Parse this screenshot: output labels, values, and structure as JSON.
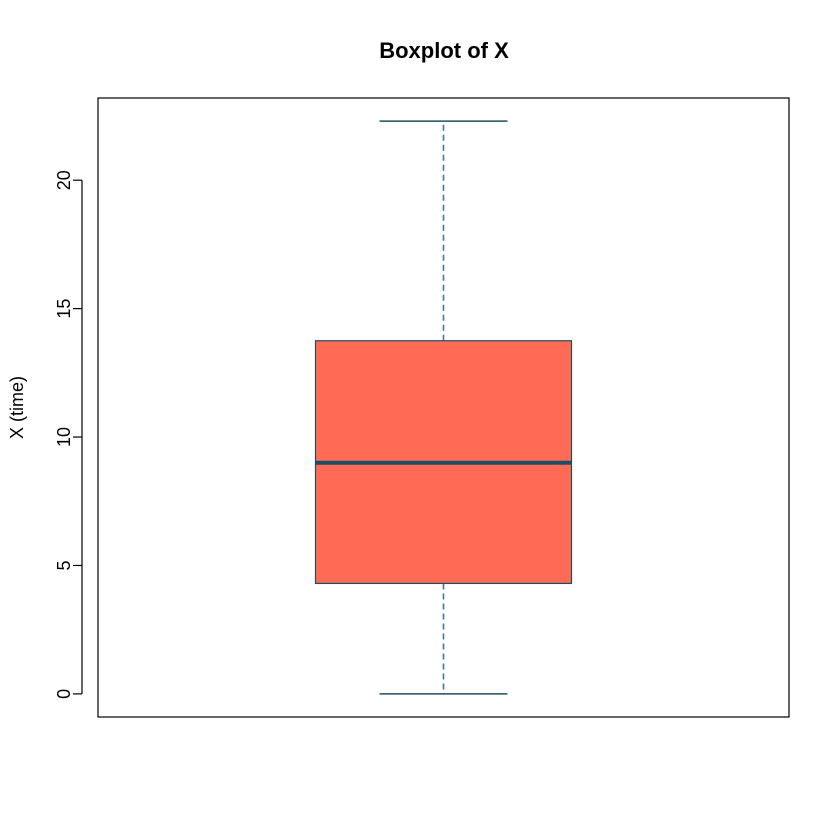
{
  "chart_data": {
    "type": "boxplot",
    "title": "Boxplot of X",
    "xlabel": "",
    "ylabel": "X (time)",
    "ylim": [
      -0.9,
      23.2
    ],
    "yticks": [
      0,
      5,
      10,
      15,
      20
    ],
    "ytick_labels": [
      "0",
      "5",
      "10",
      "15",
      "20"
    ],
    "grid": false,
    "legend": "none",
    "boxes": [
      {
        "min": 0,
        "q1": 4.3,
        "median": 9.0,
        "q3": 13.75,
        "max": 22.3
      }
    ],
    "colors": {
      "box_fill": "#FF6B54",
      "box_border": "#1F4E63",
      "median": "#1F4E63",
      "whisker": "#3E7A94",
      "frame": "#000000"
    }
  }
}
